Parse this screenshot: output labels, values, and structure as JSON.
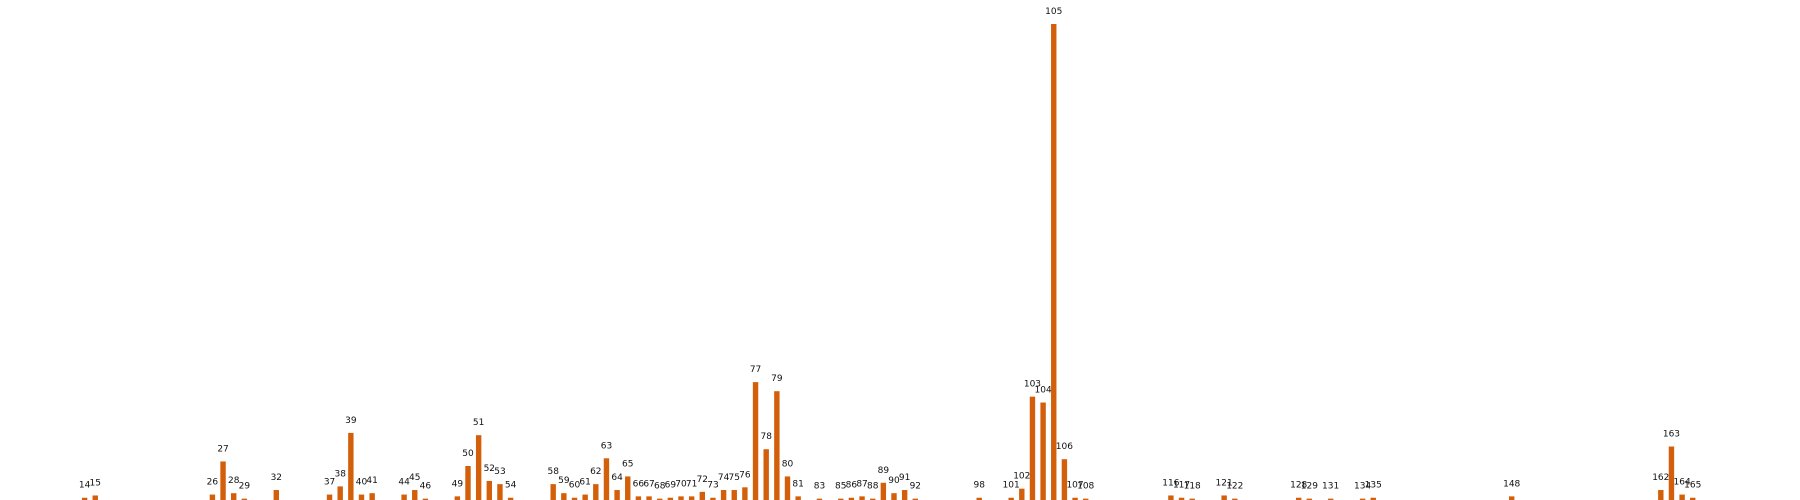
{
  "chart_data": {
    "type": "bar",
    "color": "#d35f0a",
    "ylim": [
      0,
      105
    ],
    "grid": false,
    "legend": "none",
    "xlabel": "",
    "ylabel": "",
    "categories": [
      "14",
      "15",
      "26",
      "27",
      "28",
      "29",
      "32",
      "37",
      "38",
      "39",
      "40",
      "41",
      "44",
      "45",
      "46",
      "49",
      "50",
      "51",
      "52",
      "53",
      "54",
      "58",
      "59",
      "60",
      "61",
      "62",
      "63",
      "64",
      "65",
      "66",
      "67",
      "68",
      "69",
      "70",
      "71",
      "72",
      "73",
      "74",
      "75",
      "76",
      "77",
      "78",
      "79",
      "80",
      "81",
      "83",
      "85",
      "86",
      "87",
      "88",
      "89",
      "90",
      "91",
      "92",
      "98",
      "101",
      "102",
      "103",
      "104",
      "105",
      "106",
      "107",
      "108",
      "116",
      "117",
      "118",
      "121",
      "122",
      "128",
      "129",
      "131",
      "134",
      "135",
      "148",
      "162",
      "163",
      "164",
      "165"
    ],
    "values": [
      0.5,
      1.0,
      1.2,
      8.5,
      1.5,
      0.3,
      2.2,
      1.2,
      3.0,
      14.8,
      1.2,
      1.5,
      1.2,
      2.2,
      0.3,
      0.8,
      7.5,
      14.3,
      4.2,
      3.5,
      0.5,
      3.5,
      1.5,
      0.5,
      1.2,
      3.5,
      9.2,
      2.2,
      5.2,
      0.8,
      0.8,
      0.3,
      0.5,
      0.8,
      0.8,
      1.8,
      0.5,
      2.2,
      2.2,
      2.8,
      26.0,
      11.2,
      24.0,
      5.2,
      0.8,
      0.3,
      0.3,
      0.5,
      0.8,
      0.3,
      3.8,
      1.5,
      2.2,
      0.3,
      0.5,
      0.5,
      2.5,
      22.8,
      21.5,
      105.0,
      9.0,
      0.5,
      0.3,
      1.0,
      0.5,
      0.3,
      1.0,
      0.3,
      0.5,
      0.3,
      0.3,
      0.3,
      0.5,
      0.8,
      2.2,
      11.8,
      1.2,
      0.5
    ]
  }
}
